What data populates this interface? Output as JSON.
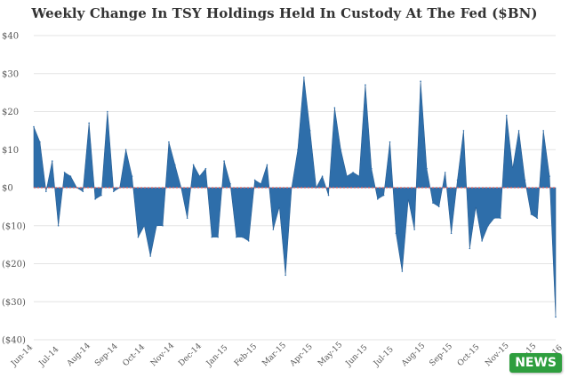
{
  "chart_data": {
    "type": "area",
    "title": "Weekly Change In TSY Holdings Held In Custody At The Fed ($BN)",
    "ylim": [
      -40,
      40
    ],
    "yticks": [
      40,
      30,
      20,
      10,
      0,
      -10,
      -20,
      -30,
      -40
    ],
    "ytick_labels": [
      "$40",
      "$30",
      "$20",
      "$10",
      "$0",
      "($10)",
      "($20)",
      "($30)",
      "($40)"
    ],
    "xtick_labels": [
      "Jun-14",
      "Jul-14",
      "Aug-14",
      "Sep-14",
      "Oct-14",
      "Nov-14",
      "Dec-14",
      "Jan-15",
      "Feb-15",
      "Mar-15",
      "Apr-15",
      "May-15",
      "Jun-15",
      "Jul-15",
      "Aug-15",
      "Sep-15",
      "Oct-15",
      "Nov-15",
      "Dec-15",
      "Jan-16"
    ],
    "grid": true,
    "zero_line_color": "#e05a5a",
    "fill_color": "#2e6eaa",
    "series": [
      {
        "values": [
          16,
          12,
          -1,
          7,
          -10,
          4,
          3,
          0,
          -1,
          17,
          -3,
          -2,
          20,
          -1,
          0,
          10,
          3,
          -13,
          -10,
          -18,
          -10,
          -10,
          12,
          6,
          0,
          -8,
          6,
          3,
          5,
          -13,
          -13,
          7,
          1,
          -13,
          -13,
          -14,
          2,
          1,
          6,
          -11,
          -5,
          -23,
          0,
          10,
          29,
          15,
          0,
          3,
          -2,
          21,
          10,
          3,
          4,
          3,
          27,
          5,
          -3,
          -2,
          12,
          -12,
          -22,
          -3,
          -11,
          28,
          5,
          -4,
          -5,
          4,
          -12,
          2,
          15,
          -16,
          -5,
          -14,
          -10,
          -8,
          -8,
          19,
          5,
          15,
          2,
          -7,
          -8,
          15,
          3,
          -34
        ]
      }
    ]
  },
  "watermark": {
    "text": "NEWS"
  }
}
